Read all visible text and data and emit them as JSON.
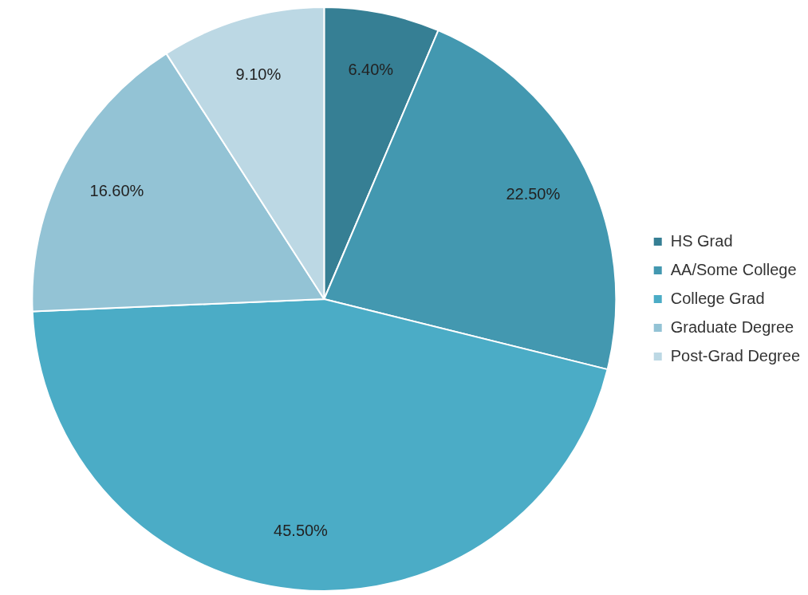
{
  "chart_data": {
    "type": "pie",
    "categories": [
      "HS Grad",
      "AA/Some College",
      "College Grad",
      "Graduate Degree",
      "Post-Grad Degree"
    ],
    "values": [
      6.4,
      22.5,
      45.5,
      16.6,
      9.1
    ],
    "value_labels": [
      "6.40%",
      "22.50%",
      "45.50%",
      "16.60%",
      "9.10%"
    ],
    "colors": [
      "#367f94",
      "#4398b0",
      "#4bacc6",
      "#93c3d5",
      "#bcd8e4"
    ],
    "legend": "right"
  }
}
